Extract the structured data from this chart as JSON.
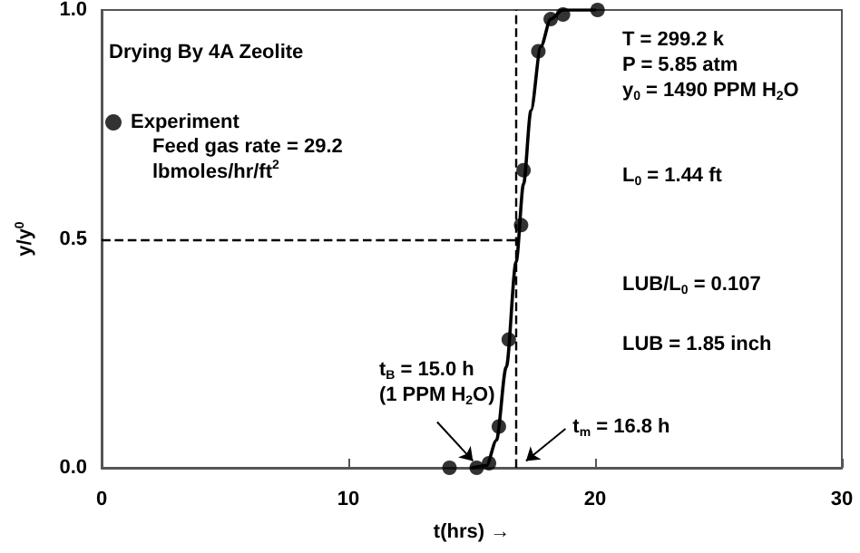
{
  "chart_data": {
    "type": "scatter",
    "xlabel": "t(hrs) →",
    "ylabel": "y/y$^{0}$",
    "xlim": [
      0,
      30
    ],
    "xticks": [
      0,
      10,
      20,
      30
    ],
    "ylim": [
      0,
      1
    ],
    "yticks": [
      {
        "value": 0,
        "label": "0.0"
      },
      {
        "value": 0.5,
        "label": "0.5"
      },
      {
        "value": 1,
        "label": "1.0"
      }
    ],
    "grid": false,
    "legend": "top left",
    "marker": "circle",
    "series": [
      {
        "name": "Experiment",
        "color": "#000000",
        "x": [
          14.1,
          15.2,
          15.7,
          16.1,
          16.5,
          17.0,
          17.1,
          17.7,
          18.2,
          18.7,
          20.1
        ],
        "values": [
          0,
          0,
          0.01,
          0.09,
          0.28,
          0.53,
          0.65,
          0.91,
          0.98,
          0.99,
          1.0
        ]
      },
      {
        "type": "line",
        "color": "#000000",
        "marker": "none",
        "line_style": "solid",
        "x": [
          15.0,
          15.6,
          16.0,
          16.4,
          16.8,
          17.1,
          17.4,
          17.8,
          18.2,
          18.7,
          20.0
        ],
        "values": [
          0,
          0.005,
          0.06,
          0.22,
          0.45,
          0.62,
          0.78,
          0.92,
          0.98,
          1.0,
          1.0
        ]
      }
    ],
    "ref_lines": [
      {
        "axis": "y",
        "value": 0.5,
        "color": "#000000",
        "line_style": "dashed"
      },
      {
        "axis": "x",
        "value": 16.8,
        "color": "#000000",
        "line_style": "dashed"
      }
    ],
    "annotations": [
      "Drying By 4A Zeolite",
      "Feed gas rate = 29.2\nlbmoles/hr/ft$^{2}$",
      "T = 299.2 k\nP = 5.85 atm\ny$_{0}$ = 1490 PPM H$_{2}$O",
      "L$_{0}$ = 1.44 ft",
      "LUB/L$_{0}$ = 0.107",
      "LUB = 1.85 inch",
      {
        "text": "t$_{B}$ = 15.0 h\n(1 PPM H$_{2}$O)",
        "x": 15.2,
        "y": 0
      },
      {
        "text": "t$_{m}$ = 16.8 h",
        "x": 17.0,
        "y": 0
      }
    ]
  }
}
